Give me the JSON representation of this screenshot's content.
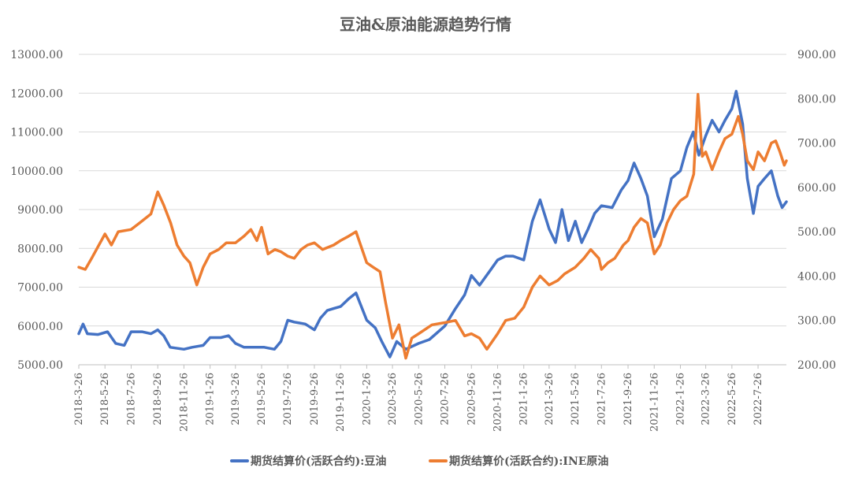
{
  "chart_data": {
    "type": "line",
    "title": "豆油&原油能源趋势行情",
    "xlabel": "",
    "ylabel": "",
    "y_left_ticks": [
      "5000.00",
      "6000.00",
      "7000.00",
      "8000.00",
      "9000.00",
      "10000.00",
      "11000.00",
      "12000.00",
      "13000.00"
    ],
    "y_right_ticks": [
      "200.00",
      "300.00",
      "400.00",
      "500.00",
      "600.00",
      "700.00",
      "800.00",
      "900.00"
    ],
    "ylim_left": [
      5000,
      13000
    ],
    "ylim_right": [
      200,
      900
    ],
    "x_range": [
      "2018-03-26",
      "2022-09-30"
    ],
    "x_tick_labels": [
      "2018-3-26",
      "2018-5-26",
      "2018-7-26",
      "2018-9-26",
      "2018-11-26",
      "2019-1-26",
      "2019-3-26",
      "2019-5-26",
      "2019-7-26",
      "2019-9-26",
      "2019-11-26",
      "2020-1-26",
      "2020-3-26",
      "2020-5-26",
      "2020-7-26",
      "2020-9-26",
      "2020-11-26",
      "2021-1-26",
      "2021-3-26",
      "2021-5-26",
      "2021-7-26",
      "2021-9-26",
      "2021-11-26",
      "2022-1-26",
      "2022-3-26",
      "2022-5-26",
      "2022-7-26"
    ],
    "grid": true,
    "legend_position": "bottom",
    "series": [
      {
        "name": "期货结算价(活跃合约):豆油",
        "axis": "left",
        "color": "#4472C4",
        "points": [
          [
            "2018-03-26",
            5800
          ],
          [
            "2018-04-05",
            6050
          ],
          [
            "2018-04-15",
            5800
          ],
          [
            "2018-05-10",
            5780
          ],
          [
            "2018-06-01",
            5850
          ],
          [
            "2018-06-20",
            5550
          ],
          [
            "2018-07-10",
            5500
          ],
          [
            "2018-07-26",
            5850
          ],
          [
            "2018-08-20",
            5850
          ],
          [
            "2018-09-10",
            5800
          ],
          [
            "2018-09-26",
            5900
          ],
          [
            "2018-10-10",
            5750
          ],
          [
            "2018-10-25",
            5450
          ],
          [
            "2018-11-26",
            5400
          ],
          [
            "2018-12-15",
            5450
          ],
          [
            "2019-01-10",
            5500
          ],
          [
            "2019-01-26",
            5700
          ],
          [
            "2019-02-20",
            5700
          ],
          [
            "2019-03-10",
            5750
          ],
          [
            "2019-03-26",
            5550
          ],
          [
            "2019-04-15",
            5450
          ],
          [
            "2019-05-10",
            5450
          ],
          [
            "2019-06-01",
            5450
          ],
          [
            "2019-06-25",
            5400
          ],
          [
            "2019-07-10",
            5600
          ],
          [
            "2019-07-26",
            6150
          ],
          [
            "2019-08-10",
            6100
          ],
          [
            "2019-09-05",
            6050
          ],
          [
            "2019-09-26",
            5900
          ],
          [
            "2019-10-10",
            6200
          ],
          [
            "2019-10-26",
            6400
          ],
          [
            "2019-11-10",
            6450
          ],
          [
            "2019-11-26",
            6500
          ],
          [
            "2019-12-15",
            6700
          ],
          [
            "2020-01-01",
            6850
          ],
          [
            "2020-01-26",
            6150
          ],
          [
            "2020-02-15",
            5950
          ],
          [
            "2020-03-01",
            5600
          ],
          [
            "2020-03-20",
            5200
          ],
          [
            "2020-04-05",
            5600
          ],
          [
            "2020-04-26",
            5400
          ],
          [
            "2020-05-26",
            5550
          ],
          [
            "2020-06-20",
            5650
          ],
          [
            "2020-07-26",
            6000
          ],
          [
            "2020-08-20",
            6450
          ],
          [
            "2020-09-10",
            6800
          ],
          [
            "2020-09-26",
            7300
          ],
          [
            "2020-10-15",
            7050
          ],
          [
            "2020-11-10",
            7450
          ],
          [
            "2020-11-26",
            7700
          ],
          [
            "2020-12-15",
            7800
          ],
          [
            "2021-01-01",
            7800
          ],
          [
            "2021-01-26",
            7700
          ],
          [
            "2021-02-15",
            8700
          ],
          [
            "2021-03-05",
            9250
          ],
          [
            "2021-03-26",
            8500
          ],
          [
            "2021-04-10",
            8150
          ],
          [
            "2021-04-25",
            9000
          ],
          [
            "2021-05-10",
            8200
          ],
          [
            "2021-05-26",
            8700
          ],
          [
            "2021-06-10",
            8150
          ],
          [
            "2021-06-25",
            8500
          ],
          [
            "2021-07-10",
            8900
          ],
          [
            "2021-07-26",
            9100
          ],
          [
            "2021-08-20",
            9050
          ],
          [
            "2021-09-10",
            9500
          ],
          [
            "2021-09-26",
            9750
          ],
          [
            "2021-10-10",
            10200
          ],
          [
            "2021-10-26",
            9800
          ],
          [
            "2021-11-10",
            9350
          ],
          [
            "2021-11-26",
            8300
          ],
          [
            "2021-12-15",
            8750
          ],
          [
            "2022-01-05",
            9800
          ],
          [
            "2022-01-26",
            10000
          ],
          [
            "2022-02-10",
            10600
          ],
          [
            "2022-02-25",
            11000
          ],
          [
            "2022-03-10",
            10400
          ],
          [
            "2022-03-26",
            10900
          ],
          [
            "2022-04-10",
            11300
          ],
          [
            "2022-04-26",
            11000
          ],
          [
            "2022-05-10",
            11300
          ],
          [
            "2022-05-26",
            11600
          ],
          [
            "2022-06-05",
            12050
          ],
          [
            "2022-06-20",
            11200
          ],
          [
            "2022-07-01",
            9800
          ],
          [
            "2022-07-15",
            8900
          ],
          [
            "2022-07-26",
            9600
          ],
          [
            "2022-08-10",
            9800
          ],
          [
            "2022-08-26",
            10000
          ],
          [
            "2022-09-10",
            9350
          ],
          [
            "2022-09-20",
            9050
          ],
          [
            "2022-09-30",
            9200
          ]
        ]
      },
      {
        "name": "期货结算价(活跃合约):INE原油",
        "axis": "right",
        "color": "#ED7D31",
        "points": [
          [
            "2018-03-26",
            420
          ],
          [
            "2018-04-10",
            415
          ],
          [
            "2018-04-25",
            440
          ],
          [
            "2018-05-26",
            495
          ],
          [
            "2018-06-10",
            470
          ],
          [
            "2018-06-26",
            500
          ],
          [
            "2018-07-26",
            505
          ],
          [
            "2018-08-15",
            520
          ],
          [
            "2018-09-10",
            540
          ],
          [
            "2018-09-26",
            590
          ],
          [
            "2018-10-10",
            560
          ],
          [
            "2018-10-26",
            520
          ],
          [
            "2018-11-10",
            470
          ],
          [
            "2018-11-26",
            445
          ],
          [
            "2018-12-10",
            430
          ],
          [
            "2018-12-26",
            380
          ],
          [
            "2019-01-10",
            420
          ],
          [
            "2019-01-26",
            450
          ],
          [
            "2019-02-15",
            460
          ],
          [
            "2019-03-05",
            475
          ],
          [
            "2019-03-26",
            475
          ],
          [
            "2019-04-15",
            490
          ],
          [
            "2019-05-01",
            505
          ],
          [
            "2019-05-15",
            480
          ],
          [
            "2019-05-26",
            510
          ],
          [
            "2019-06-10",
            450
          ],
          [
            "2019-06-26",
            460
          ],
          [
            "2019-07-10",
            455
          ],
          [
            "2019-07-26",
            445
          ],
          [
            "2019-08-10",
            440
          ],
          [
            "2019-08-26",
            460
          ],
          [
            "2019-09-10",
            470
          ],
          [
            "2019-09-26",
            475
          ],
          [
            "2019-10-15",
            460
          ],
          [
            "2019-11-10",
            470
          ],
          [
            "2019-11-26",
            480
          ],
          [
            "2019-12-15",
            490
          ],
          [
            "2020-01-01",
            500
          ],
          [
            "2020-01-26",
            430
          ],
          [
            "2020-02-10",
            420
          ],
          [
            "2020-02-26",
            410
          ],
          [
            "2020-03-10",
            340
          ],
          [
            "2020-03-26",
            260
          ],
          [
            "2020-04-10",
            290
          ],
          [
            "2020-04-26",
            215
          ],
          [
            "2020-05-10",
            260
          ],
          [
            "2020-05-26",
            270
          ],
          [
            "2020-06-26",
            290
          ],
          [
            "2020-07-26",
            295
          ],
          [
            "2020-08-20",
            300
          ],
          [
            "2020-09-10",
            265
          ],
          [
            "2020-09-26",
            270
          ],
          [
            "2020-10-15",
            260
          ],
          [
            "2020-11-01",
            235
          ],
          [
            "2020-11-26",
            270
          ],
          [
            "2020-12-15",
            300
          ],
          [
            "2021-01-05",
            305
          ],
          [
            "2021-01-26",
            330
          ],
          [
            "2021-02-15",
            375
          ],
          [
            "2021-03-05",
            400
          ],
          [
            "2021-03-26",
            380
          ],
          [
            "2021-04-15",
            390
          ],
          [
            "2021-05-01",
            405
          ],
          [
            "2021-05-26",
            420
          ],
          [
            "2021-06-15",
            440
          ],
          [
            "2021-07-01",
            460
          ],
          [
            "2021-07-20",
            440
          ],
          [
            "2021-07-26",
            415
          ],
          [
            "2021-08-10",
            430
          ],
          [
            "2021-08-26",
            440
          ],
          [
            "2021-09-15",
            470
          ],
          [
            "2021-09-26",
            480
          ],
          [
            "2021-10-10",
            510
          ],
          [
            "2021-10-26",
            530
          ],
          [
            "2021-11-10",
            520
          ],
          [
            "2021-11-26",
            450
          ],
          [
            "2021-12-10",
            470
          ],
          [
            "2021-12-26",
            520
          ],
          [
            "2022-01-10",
            550
          ],
          [
            "2022-01-26",
            570
          ],
          [
            "2022-02-10",
            580
          ],
          [
            "2022-02-26",
            630
          ],
          [
            "2022-03-08",
            810
          ],
          [
            "2022-03-18",
            670
          ],
          [
            "2022-03-26",
            680
          ],
          [
            "2022-04-10",
            640
          ],
          [
            "2022-04-26",
            680
          ],
          [
            "2022-05-10",
            710
          ],
          [
            "2022-05-26",
            720
          ],
          [
            "2022-06-10",
            760
          ],
          [
            "2022-06-20",
            720
          ],
          [
            "2022-07-01",
            660
          ],
          [
            "2022-07-15",
            640
          ],
          [
            "2022-07-26",
            680
          ],
          [
            "2022-08-10",
            660
          ],
          [
            "2022-08-26",
            700
          ],
          [
            "2022-09-05",
            705
          ],
          [
            "2022-09-15",
            680
          ],
          [
            "2022-09-25",
            650
          ],
          [
            "2022-09-30",
            660
          ]
        ]
      }
    ]
  }
}
